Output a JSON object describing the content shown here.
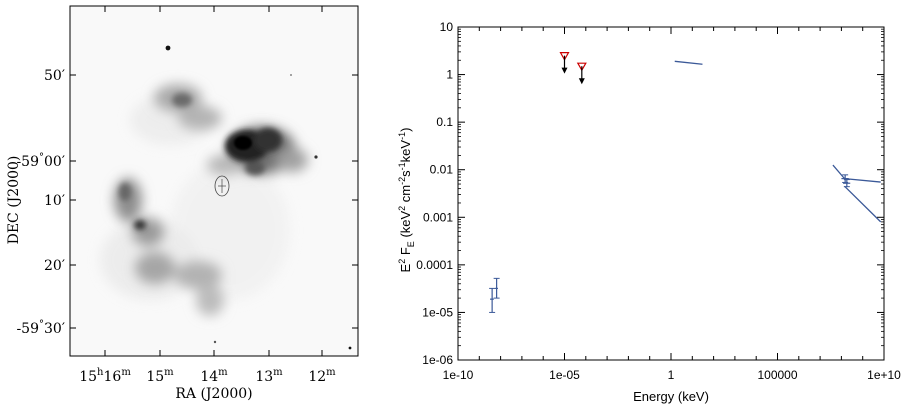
{
  "chart_data": [
    {
      "type": "image",
      "xlabel": "RA (J2000)",
      "ylabel": "DEC (J2000)",
      "x_ticks": [
        {
          "h": "15",
          "m": "16"
        },
        {
          "h": "",
          "m": "15"
        },
        {
          "h": "",
          "m": "14"
        },
        {
          "h": "",
          "m": "13"
        },
        {
          "h": "",
          "m": "12"
        }
      ],
      "y_ticks": [
        {
          "deg": "",
          "min": "50"
        },
        {
          "deg": "-59",
          "min": "00"
        },
        {
          "deg": "",
          "min": "10"
        },
        {
          "deg": "",
          "min": "20"
        },
        {
          "deg": "-59",
          "min": "30"
        }
      ],
      "hour_symbol": "h",
      "minute_symbol": "m",
      "degree_symbol": "°",
      "arcmin_symbol": "′"
    },
    {
      "type": "scatter",
      "xscale": "log",
      "yscale": "log",
      "xlim": [
        1e-10,
        10000000000.0
      ],
      "ylim": [
        1e-06,
        10
      ],
      "xlabel": "Energy (keV)",
      "ylabel": "E² F_E (keV² cm⁻² s⁻¹ keV⁻¹)",
      "x_ticks": [
        "1e-10",
        "1e-05",
        "1",
        "100000",
        "1e+10"
      ],
      "y_ticks": [
        "10",
        "1",
        "0.1",
        "0.01",
        "0.001",
        "0.0001",
        "1e-05",
        "1e-06"
      ],
      "series": [
        {
          "style": "errorbar",
          "color": "#3b5998",
          "points": [
            {
              "x": 4e-09,
              "y": 1.9e-05,
              "ylo": 1e-05,
              "yhi": 3.2e-05,
              "xlo": 3.2e-09,
              "xhi": 4.8e-09
            },
            {
              "x": 6.5e-09,
              "y": 3.2e-05,
              "ylo": 2e-05,
              "yhi": 5.2e-05,
              "xlo": 5.5e-09,
              "xhi": 7.5e-09
            }
          ]
        },
        {
          "style": "upper_limit",
          "color": "#cc0000",
          "points": [
            {
              "x": 1e-05,
              "y": 2.5
            },
            {
              "x": 6.5e-05,
              "y": 1.5
            }
          ]
        },
        {
          "style": "segment",
          "color": "#3b5998",
          "segments": [
            {
              "x1": 1.5,
              "y1": 1.9,
              "x2": 30,
              "y2": 1.65
            }
          ]
        },
        {
          "style": "errorbar",
          "color": "#3b5998",
          "points": [
            {
              "x": 150000000.0,
              "y": 0.0065,
              "ylo": 0.0054,
              "yhi": 0.0078,
              "xlo": 100000000.0,
              "xhi": 220000000.0
            },
            {
              "x": 180000000.0,
              "y": 0.0052,
              "ylo": 0.0044,
              "yhi": 0.0062,
              "xlo": 120000000.0,
              "xhi": 260000000.0
            }
          ]
        },
        {
          "style": "segment",
          "color": "#3b5998",
          "segments": [
            {
              "x1": 40000000.0,
              "y1": 0.0125,
              "x2": 140000000.0,
              "y2": 0.0065
            },
            {
              "x1": 140000000.0,
              "y1": 0.0065,
              "x2": 7000000000.0,
              "y2": 0.0055
            },
            {
              "x1": 140000000.0,
              "y1": 0.0045,
              "x2": 7000000000.0,
              "y2": 0.0008
            }
          ]
        }
      ]
    }
  ]
}
